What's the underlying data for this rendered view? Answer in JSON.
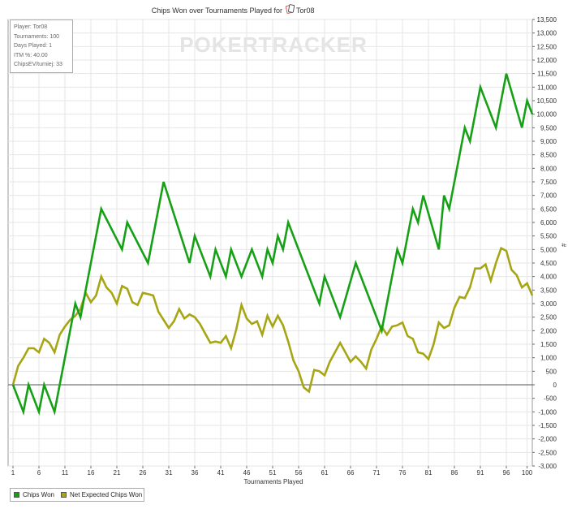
{
  "chart_data": {
    "type": "line",
    "title": "Chips Won over Tournaments Played for",
    "player_name": "Tor08",
    "player_icon": "cards-icon",
    "xlabel": "Tournaments Played",
    "ylabel": "#",
    "xlim": [
      1,
      100
    ],
    "ylim": [
      -3000,
      13500
    ],
    "x_ticks": [
      1,
      6,
      11,
      16,
      21,
      26,
      31,
      36,
      41,
      46,
      51,
      56,
      61,
      66,
      71,
      76,
      81,
      86,
      91,
      96,
      100
    ],
    "y_ticks": [
      -3000,
      -2500,
      -2000,
      -1500,
      -1000,
      -500,
      0,
      500,
      1000,
      1500,
      2000,
      2500,
      3000,
      3500,
      4000,
      4500,
      5000,
      5500,
      6000,
      6500,
      7000,
      7500,
      8000,
      8500,
      9000,
      9500,
      10000,
      10500,
      11000,
      11500,
      12000,
      12500,
      13000,
      13500
    ],
    "y_tick_labels": [
      "-3,000",
      "-2,500",
      "-2,000",
      "-1,500",
      "-1,000",
      "-500",
      "0",
      "500",
      "1,000",
      "1,500",
      "2,000",
      "2,500",
      "3,000",
      "3,500",
      "4,000",
      "4,500",
      "5,000",
      "5,500",
      "6,000",
      "6,500",
      "7,000",
      "7,500",
      "8,000",
      "8,500",
      "9,000",
      "9,500",
      "10,000",
      "10,500",
      "11,000",
      "11,500",
      "12,000",
      "12,500",
      "13,000",
      "13,500"
    ],
    "grid": true,
    "legend_position": "bottom-left",
    "series": [
      {
        "name": "Chips Won",
        "color": "#16a016",
        "points": [
          [
            1,
            0
          ],
          [
            3,
            -1000
          ],
          [
            4,
            0
          ],
          [
            6,
            -1000
          ],
          [
            7,
            0
          ],
          [
            9,
            -1000
          ],
          [
            13,
            3000
          ],
          [
            14,
            2500
          ],
          [
            18,
            6500
          ],
          [
            22,
            5000
          ],
          [
            23,
            6000
          ],
          [
            27,
            4500
          ],
          [
            30,
            7500
          ],
          [
            35,
            4500
          ],
          [
            36,
            5500
          ],
          [
            39,
            4000
          ],
          [
            40,
            5000
          ],
          [
            42,
            4000
          ],
          [
            43,
            5000
          ],
          [
            45,
            4000
          ],
          [
            47,
            5000
          ],
          [
            49,
            4000
          ],
          [
            50,
            5000
          ],
          [
            51,
            4500
          ],
          [
            52,
            5500
          ],
          [
            53,
            5000
          ],
          [
            54,
            6000
          ],
          [
            60,
            3000
          ],
          [
            61,
            4000
          ],
          [
            64,
            2500
          ],
          [
            67,
            4500
          ],
          [
            72,
            2000
          ],
          [
            75,
            5000
          ],
          [
            76,
            4500
          ],
          [
            78,
            6500
          ],
          [
            79,
            6000
          ],
          [
            80,
            7000
          ],
          [
            83,
            5000
          ],
          [
            84,
            7000
          ],
          [
            85,
            6500
          ],
          [
            88,
            9500
          ],
          [
            89,
            9000
          ],
          [
            91,
            11000
          ],
          [
            94,
            9500
          ],
          [
            96,
            11500
          ],
          [
            99,
            9500
          ],
          [
            100,
            10500
          ],
          [
            101,
            10000
          ]
        ]
      },
      {
        "name": "Net Expected Chips Won",
        "color": "#a6a614",
        "points": [
          [
            1,
            0
          ],
          [
            2,
            700
          ],
          [
            3,
            1000
          ],
          [
            4,
            1350
          ],
          [
            5,
            1350
          ],
          [
            6,
            1200
          ],
          [
            7,
            1700
          ],
          [
            8,
            1550
          ],
          [
            9,
            1200
          ],
          [
            10,
            1850
          ],
          [
            11,
            2150
          ],
          [
            12,
            2400
          ],
          [
            13,
            2550
          ],
          [
            14,
            2800
          ],
          [
            15,
            3400
          ],
          [
            16,
            3050
          ],
          [
            17,
            3300
          ],
          [
            18,
            4000
          ],
          [
            19,
            3600
          ],
          [
            20,
            3400
          ],
          [
            21,
            3000
          ],
          [
            22,
            3650
          ],
          [
            23,
            3550
          ],
          [
            24,
            3050
          ],
          [
            25,
            2950
          ],
          [
            26,
            3400
          ],
          [
            27,
            3350
          ],
          [
            28,
            3300
          ],
          [
            29,
            2700
          ],
          [
            30,
            2400
          ],
          [
            31,
            2100
          ],
          [
            32,
            2350
          ],
          [
            33,
            2800
          ],
          [
            34,
            2450
          ],
          [
            35,
            2600
          ],
          [
            36,
            2500
          ],
          [
            37,
            2250
          ],
          [
            38,
            1900
          ],
          [
            39,
            1550
          ],
          [
            40,
            1600
          ],
          [
            41,
            1550
          ],
          [
            42,
            1800
          ],
          [
            43,
            1350
          ],
          [
            44,
            2050
          ],
          [
            45,
            2950
          ],
          [
            46,
            2450
          ],
          [
            47,
            2250
          ],
          [
            48,
            2350
          ],
          [
            49,
            1850
          ],
          [
            50,
            2550
          ],
          [
            51,
            2150
          ],
          [
            52,
            2550
          ],
          [
            53,
            2200
          ],
          [
            54,
            1600
          ],
          [
            55,
            900
          ],
          [
            56,
            500
          ],
          [
            57,
            -100
          ],
          [
            58,
            -250
          ],
          [
            59,
            550
          ],
          [
            60,
            500
          ],
          [
            61,
            350
          ],
          [
            62,
            850
          ],
          [
            63,
            1200
          ],
          [
            64,
            1550
          ],
          [
            65,
            1200
          ],
          [
            66,
            850
          ],
          [
            67,
            1050
          ],
          [
            68,
            850
          ],
          [
            69,
            600
          ],
          [
            70,
            1300
          ],
          [
            71,
            1700
          ],
          [
            72,
            2150
          ],
          [
            73,
            1850
          ],
          [
            74,
            2150
          ],
          [
            75,
            2200
          ],
          [
            76,
            2300
          ],
          [
            77,
            1800
          ],
          [
            78,
            1700
          ],
          [
            79,
            1200
          ],
          [
            80,
            1150
          ],
          [
            81,
            950
          ],
          [
            82,
            1500
          ],
          [
            83,
            2300
          ],
          [
            84,
            2100
          ],
          [
            85,
            2200
          ],
          [
            86,
            2850
          ],
          [
            87,
            3250
          ],
          [
            88,
            3200
          ],
          [
            89,
            3600
          ],
          [
            90,
            4300
          ],
          [
            91,
            4300
          ],
          [
            92,
            4450
          ],
          [
            93,
            3850
          ],
          [
            94,
            4500
          ],
          [
            95,
            5050
          ],
          [
            96,
            4950
          ],
          [
            97,
            4250
          ],
          [
            98,
            4050
          ],
          [
            99,
            3600
          ],
          [
            100,
            3750
          ],
          [
            101,
            3300
          ]
        ]
      }
    ],
    "watermark": "POKERTRACKER"
  },
  "infobox": {
    "player": "Player: Tor08",
    "tournaments": "Tournaments: 100",
    "days": "Days Played: 1",
    "itm": "ITM %: 40.00",
    "chipsev": "ChipsEV/turniej: 33"
  },
  "legend": {
    "items": [
      "Chips Won",
      "Net Expected Chips Won"
    ]
  }
}
